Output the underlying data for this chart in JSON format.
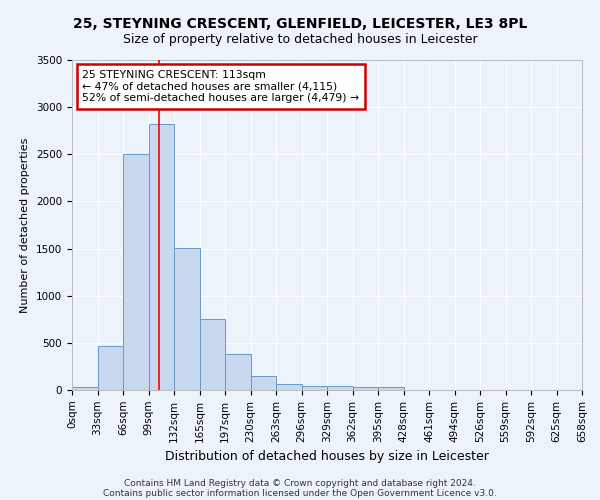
{
  "title": "25, STEYNING CRESCENT, GLENFIELD, LEICESTER, LE3 8PL",
  "subtitle": "Size of property relative to detached houses in Leicester",
  "xlabel": "Distribution of detached houses by size in Leicester",
  "ylabel": "Number of detached properties",
  "bar_color": "#c8d8ee",
  "bar_edge_color": "#6699cc",
  "bar_values": [
    30,
    470,
    2500,
    2820,
    1510,
    750,
    380,
    145,
    60,
    45,
    45,
    35,
    30,
    0,
    0,
    0,
    0,
    0,
    0,
    0
  ],
  "bin_labels": [
    "0sqm",
    "33sqm",
    "66sqm",
    "99sqm",
    "132sqm",
    "165sqm",
    "197sqm",
    "230sqm",
    "263sqm",
    "296sqm",
    "329sqm",
    "362sqm",
    "395sqm",
    "428sqm",
    "461sqm",
    "494sqm",
    "526sqm",
    "559sqm",
    "592sqm",
    "625sqm",
    "658sqm"
  ],
  "ylim": [
    0,
    3500
  ],
  "yticks": [
    0,
    500,
    1000,
    1500,
    2000,
    2500,
    3000,
    3500
  ],
  "red_line_x": 3.42,
  "annotation_text": "25 STEYNING CRESCENT: 113sqm\n← 47% of detached houses are smaller (4,115)\n52% of semi-detached houses are larger (4,479) →",
  "annotation_box_color": "#ffffff",
  "annotation_box_edge_color": "#cc0000",
  "footer_line1": "Contains HM Land Registry data © Crown copyright and database right 2024.",
  "footer_line2": "Contains public sector information licensed under the Open Government Licence v3.0.",
  "background_color": "#edf3fb",
  "grid_color": "#ffffff",
  "title_fontsize": 10,
  "subtitle_fontsize": 9,
  "tick_fontsize": 7.5,
  "ylabel_fontsize": 8,
  "xlabel_fontsize": 9,
  "footer_fontsize": 6.5
}
